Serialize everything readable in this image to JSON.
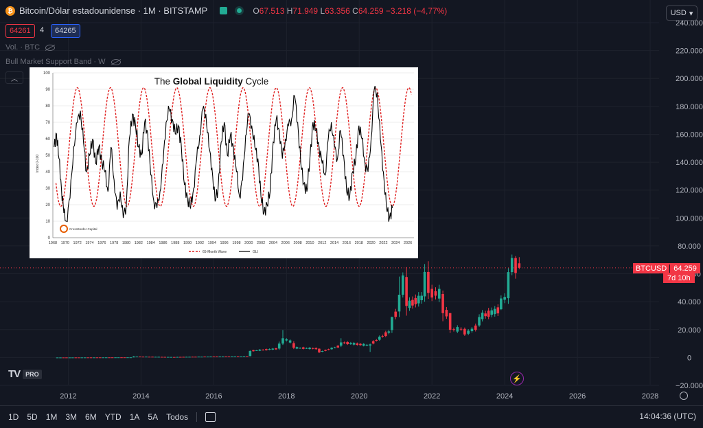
{
  "header": {
    "symbol_icon": "bitcoin-icon",
    "title": "Bitcoin/Dólar estadounidense · 1M · BITSTAMP",
    "open_label": "O",
    "open": "67.513",
    "high_label": "H",
    "high": "71.949",
    "low_label": "L",
    "low": "63.356",
    "close_label": "C",
    "close": "64.259",
    "change": "−3.218 (−4,77%)"
  },
  "prices": {
    "sell": "64261",
    "spread": "4",
    "buy": "64265"
  },
  "indicators": [
    {
      "label": "Vol. · BTC"
    },
    {
      "label": "Bull Market Support Band · W"
    }
  ],
  "currency": "USD",
  "price_tag": {
    "symbol": "BTCUSD",
    "value": "64.259",
    "countdown": "7d 10h"
  },
  "timeframes": [
    "1D",
    "5D",
    "1M",
    "3M",
    "6M",
    "YTD",
    "1A",
    "5A",
    "Todos"
  ],
  "clock": "14:04:36 (UTC)",
  "logo": {
    "pro": "PRO"
  },
  "colors": {
    "bg": "#131722",
    "up": "#22ab94",
    "down": "#f23645",
    "grid": "#1e222d"
  },
  "chart_data": [
    {
      "type": "candlestick",
      "title": "",
      "y_ticks": [
        "240.000",
        "220.000",
        "200.000",
        "180.000",
        "160.000",
        "140.000",
        "120.000",
        "100.000",
        "80.000",
        "60.000",
        "40.000",
        "20.000",
        "0",
        "−20.000"
      ],
      "ylim": [
        -20000,
        240000
      ],
      "x_ticks": [
        "2012",
        "2014",
        "2016",
        "2018",
        "2020",
        "2022",
        "2024",
        "2026",
        "2028"
      ],
      "xlim": [
        2010.5,
        2029.0
      ],
      "last_price": 64259,
      "candles_yearly_approx": [
        {
          "x": 2011.7,
          "o": 5,
          "c": 5,
          "h": 30,
          "l": 2
        },
        {
          "x": 2013.8,
          "o": 100,
          "c": 700,
          "h": 1100,
          "l": 100
        },
        {
          "x": 2015.0,
          "o": 300,
          "c": 400,
          "h": 500,
          "l": 200
        },
        {
          "x": 2017.0,
          "o": 1000,
          "c": 4700,
          "h": 5000,
          "l": 900
        },
        {
          "x": 2017.8,
          "o": 6400,
          "c": 10000,
          "h": 11400,
          "l": 5500
        },
        {
          "x": 2017.9,
          "o": 10000,
          "c": 13800,
          "h": 19700,
          "l": 9000
        },
        {
          "x": 2018.2,
          "o": 10300,
          "c": 7000,
          "h": 11700,
          "l": 6000
        },
        {
          "x": 2018.9,
          "o": 6300,
          "c": 3700,
          "h": 6500,
          "l": 3200
        },
        {
          "x": 2019.5,
          "o": 8500,
          "c": 10800,
          "h": 13800,
          "l": 7500
        },
        {
          "x": 2020.3,
          "o": 8600,
          "c": 9400,
          "h": 10000,
          "l": 4000
        },
        {
          "x": 2020.9,
          "o": 19700,
          "c": 29000,
          "h": 29300,
          "l": 17600
        },
        {
          "x": 2021.1,
          "o": 33000,
          "c": 45000,
          "h": 58000,
          "l": 29000
        },
        {
          "x": 2021.2,
          "o": 45000,
          "c": 58800,
          "h": 61000,
          "l": 43000
        },
        {
          "x": 2021.3,
          "o": 57700,
          "c": 37000,
          "h": 64800,
          "l": 30000
        },
        {
          "x": 2021.8,
          "o": 43800,
          "c": 61300,
          "h": 67000,
          "l": 40000
        },
        {
          "x": 2021.9,
          "o": 61300,
          "c": 46300,
          "h": 69000,
          "l": 42000
        },
        {
          "x": 2022.3,
          "o": 45500,
          "c": 31800,
          "h": 48000,
          "l": 26000
        },
        {
          "x": 2022.5,
          "o": 31800,
          "c": 19900,
          "h": 32000,
          "l": 17600
        },
        {
          "x": 2022.9,
          "o": 20500,
          "c": 16500,
          "h": 21500,
          "l": 15500
        },
        {
          "x": 2023.3,
          "o": 23000,
          "c": 29000,
          "h": 31000,
          "l": 22000
        },
        {
          "x": 2023.9,
          "o": 34600,
          "c": 42300,
          "h": 44500,
          "l": 34000
        },
        {
          "x": 2024.1,
          "o": 42500,
          "c": 61200,
          "h": 64000,
          "l": 38500
        },
        {
          "x": 2024.2,
          "o": 61200,
          "c": 71300,
          "h": 73800,
          "l": 59000
        },
        {
          "x": 2024.3,
          "o": 71300,
          "c": 60600,
          "h": 72700,
          "l": 56500
        },
        {
          "x": 2024.4,
          "o": 67513,
          "c": 64259,
          "h": 71949,
          "l": 63356
        }
      ]
    },
    {
      "type": "line",
      "title": "The Global Liquidity Cycle",
      "title_plain_1": "The ",
      "title_bold": "Global Liquidity",
      "title_plain_2": " Cycle",
      "ylabel": "Index 0-100",
      "y_ticks": [
        "0",
        "10",
        "20",
        "30",
        "40",
        "50",
        "60",
        "70",
        "80",
        "90",
        "100"
      ],
      "ylim": [
        0,
        100
      ],
      "x_ticks": [
        "1968",
        "1970",
        "1972",
        "1974",
        "1976",
        "1978",
        "1980",
        "1982",
        "1984",
        "1986",
        "1988",
        "1990",
        "1992",
        "1994",
        "1996",
        "1998",
        "2000",
        "2002",
        "2004",
        "2006",
        "2008",
        "2010",
        "2012",
        "2014",
        "2016",
        "2018",
        "2020",
        "2022",
        "2024",
        "2026"
      ],
      "xlim": [
        1968,
        2027
      ],
      "logo_text": "CrossBorder Capital",
      "series": [
        {
          "name": "65-Month Wave",
          "style": "dashed",
          "color": "#e02020",
          "period_months": 65,
          "center": 55,
          "amplitude": 36,
          "peak_year": 1972.0
        },
        {
          "name": "GLI",
          "style": "solid",
          "color": "#000000",
          "x": [
            1968.2,
            1968.6,
            1969.0,
            1969.4,
            1969.8,
            1970.2,
            1970.8,
            1971.4,
            1972.0,
            1972.5,
            1973.0,
            1973.5,
            1974.0,
            1974.5,
            1975.0,
            1975.5,
            1976.0,
            1976.5,
            1977.0,
            1977.5,
            1978.0,
            1978.5,
            1979.0,
            1979.5,
            1980.0,
            1980.5,
            1981.0,
            1981.5,
            1982.0,
            1982.5,
            1983.0,
            1983.5,
            1984.0,
            1984.5,
            1985.0,
            1985.5,
            1986.0,
            1986.5,
            1987.0,
            1987.5,
            1988.0,
            1988.5,
            1989.0,
            1989.5,
            1990.0,
            1990.5,
            1991.0,
            1991.5,
            1992.0,
            1992.5,
            1993.0,
            1993.5,
            1994.0,
            1994.5,
            1995.0,
            1995.5,
            1996.0,
            1996.5,
            1997.0,
            1997.5,
            1998.0,
            1998.5,
            1999.0,
            1999.5,
            2000.0,
            2000.5,
            2001.0,
            2001.5,
            2002.0,
            2002.5,
            2003.0,
            2003.5,
            2004.0,
            2004.5,
            2005.0,
            2005.5,
            2006.0,
            2006.5,
            2007.0,
            2007.5,
            2008.0,
            2008.5,
            2009.0,
            2009.5,
            2010.0,
            2010.5,
            2011.0,
            2011.5,
            2012.0,
            2012.5,
            2013.0,
            2013.5,
            2014.0,
            2014.5,
            2015.0,
            2015.5,
            2016.0,
            2016.5,
            2017.0,
            2017.5,
            2018.0,
            2018.5,
            2019.0,
            2019.5,
            2020.0,
            2020.5,
            2021.0,
            2021.5,
            2022.0,
            2022.5,
            2023.0,
            2023.5
          ],
          "y": [
            55,
            63,
            48,
            30,
            15,
            10,
            24,
            55,
            70,
            77,
            58,
            40,
            50,
            60,
            45,
            55,
            47,
            40,
            28,
            55,
            35,
            17,
            28,
            12,
            20,
            60,
            75,
            68,
            55,
            50,
            70,
            63,
            38,
            22,
            18,
            28,
            45,
            70,
            78,
            72,
            63,
            68,
            55,
            32,
            24,
            18,
            30,
            48,
            62,
            78,
            75,
            55,
            42,
            22,
            30,
            58,
            70,
            50,
            62,
            55,
            40,
            25,
            35,
            62,
            75,
            68,
            55,
            48,
            25,
            15,
            20,
            28,
            58,
            72,
            65,
            48,
            60,
            68,
            72,
            86,
            70,
            45,
            33,
            28,
            48,
            70,
            65,
            55,
            45,
            38,
            60,
            70,
            55,
            48,
            65,
            50,
            28,
            25,
            40,
            48,
            68,
            60,
            45,
            40,
            60,
            90,
            88,
            60,
            40,
            18,
            12,
            18
          ]
        }
      ]
    }
  ]
}
